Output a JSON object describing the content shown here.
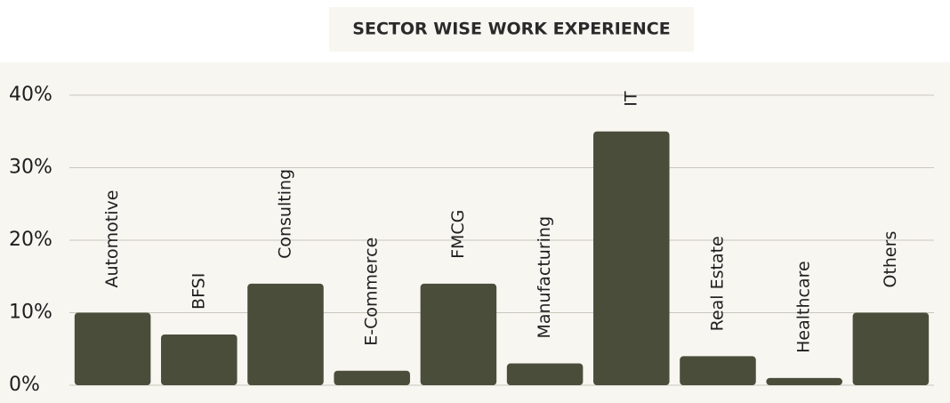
{
  "chart_data": {
    "type": "bar",
    "title": "SECTOR WISE WORK EXPERIENCE",
    "categories": [
      "Automotive",
      "BFSI",
      "Consulting",
      "E-Commerce",
      "FMCG",
      "Manufacturing",
      "IT",
      "Real Estate",
      "Healthcare",
      "Others"
    ],
    "values": [
      10,
      7,
      14,
      2,
      14,
      3,
      35,
      4,
      1,
      10
    ],
    "color": "#4a4d3a",
    "ylim": [
      0,
      40
    ],
    "yticks": [
      {
        "value": 0,
        "label": "0%"
      },
      {
        "value": 10,
        "label": "10%"
      },
      {
        "value": 20,
        "label": "20%"
      },
      {
        "value": 30,
        "label": "30%"
      },
      {
        "value": 40,
        "label": "40%"
      }
    ],
    "grid": true
  }
}
